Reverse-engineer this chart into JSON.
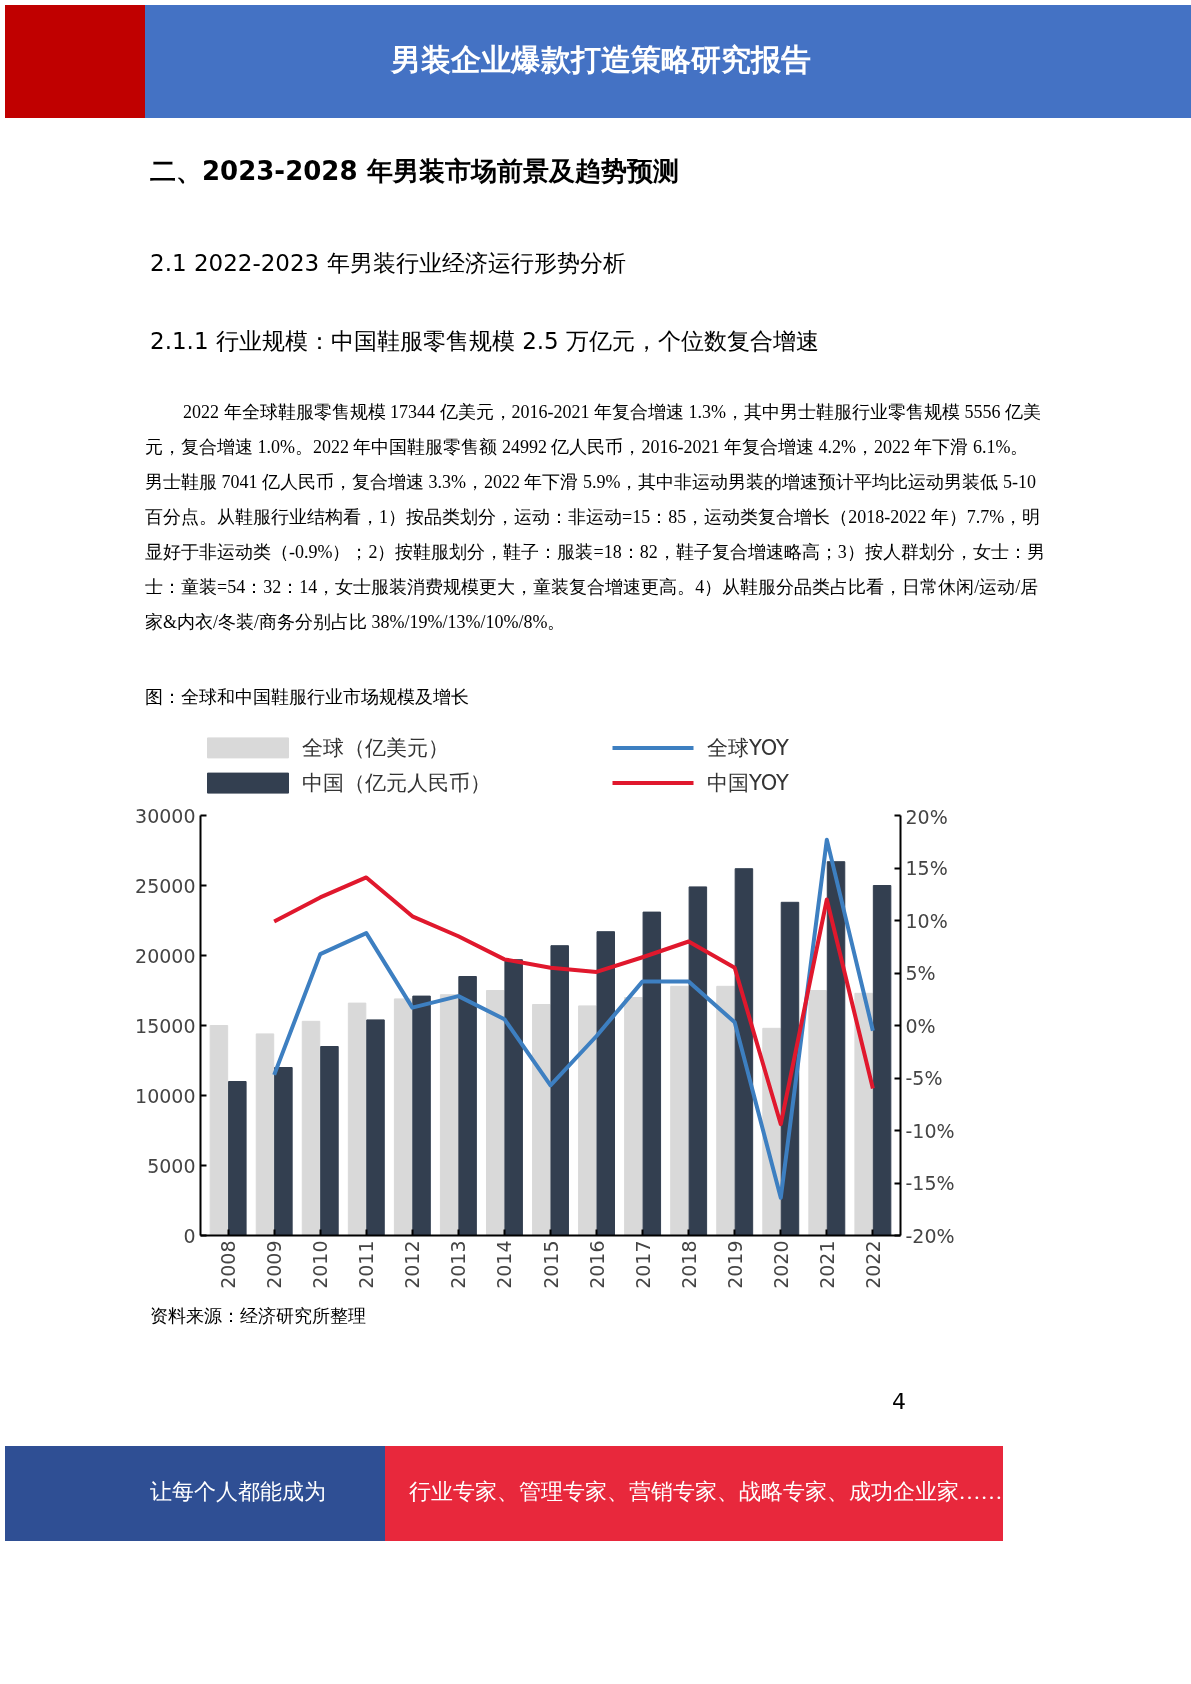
{
  "chart_data": {
    "type": "bar",
    "title": "图：全球和中国鞋服行业市场规模及增长",
    "annotations": [
      "男装企业爆款打造策略研究报告",
      "二、2023-2028 年男装市场前景及趋势预测",
      "2.1 2022-2023 年男装行业经济运行形势分析",
      "2.1.1 行业规模：中国鞋服零售规模 2.5 万亿元，个位数复合增速",
      "2022 年全球鞋服零售规模 17344 亿美元，2016-2021 年复合增速 1.3%，其中男士鞋服行业零售规模 5556 亿美元，复合增速 1.0%。2022 年中国鞋服零售额 24992 亿人民币，2016-2021 年复合增速 4.2%，2022 年下滑 6.1%。男士鞋服 7041 亿人民币，复合增速 3.3%，2022 年下滑 5.9%，其中非运动男装的增速预计平均比运动男装低 5-10 百分点。从鞋服行业结构看，1）按品类划分，运动：非运动=15：85，运动类复合增长（2018-2022 年）7.7%，明显好于非运动类（-0.9%）；2）按鞋服划分，鞋子：服装=18：82，鞋子复合增速略高；3）按人群划分，女士：男士：童装=54：32：14，女士服装消费规模更大，童装复合增速更高。4）从鞋服分品类占比看，日常休闲/运动/居家&内衣/冬装/商务分别占比 38%/19%/13%/10%/8%。",
      "资料来源：经济研究所整理",
      "4",
      "让每个人都能成为",
      "行业专家、管理专家、营销专家、战略专家、成功企业家……"
    ],
    "categories": [
      "2008",
      "2009",
      "2010",
      "2011",
      "2012",
      "2013",
      "2014",
      "2015",
      "2016",
      "2017",
      "2018",
      "2019",
      "2020",
      "2021",
      "2022"
    ],
    "series": [
      {
        "name": "全球（亿美元）",
        "color": "#d9d9d9",
        "values": [
          15000,
          14400,
          15300,
          16600,
          16900,
          17200,
          17500,
          16500,
          16400,
          17000,
          17800,
          17800,
          14800,
          17500,
          17300
        ]
      },
      {
        "name": "中国（亿元人民币）",
        "color": "#333f50",
        "values": [
          11000,
          12000,
          13500,
          15400,
          17100,
          18500,
          19700,
          20700,
          21700,
          23100,
          24900,
          26200,
          23800,
          26700,
          25000
        ]
      },
      {
        "name": "全球YOY",
        "type": "line",
        "axis": "y2",
        "color": "#3d7fc1",
        "values": [
          null,
          -4.7,
          6.8,
          8.8,
          1.7,
          2.8,
          0.6,
          -5.7,
          -1.0,
          4.2,
          4.2,
          0.3,
          -16.4,
          17.7,
          -0.5
        ]
      },
      {
        "name": "中国YOY",
        "type": "line",
        "axis": "y2",
        "color": "#e0182d",
        "values": [
          null,
          9.9,
          12.2,
          14.1,
          10.4,
          8.5,
          6.3,
          5.5,
          5.1,
          6.5,
          8.0,
          5.5,
          -9.4,
          12.0,
          -6.0
        ]
      }
    ],
    "ylim": [
      0,
      30000
    ],
    "yticks": [
      0,
      5000,
      10000,
      15000,
      20000,
      25000,
      30000
    ],
    "y2lim": [
      -20,
      20
    ],
    "y2ticks": [
      {
        "value": -20,
        "label": "-20%"
      },
      {
        "value": -15,
        "label": "-15%"
      },
      {
        "value": -10,
        "label": "-10%"
      },
      {
        "value": -5,
        "label": "-5%"
      },
      {
        "value": 0,
        "label": "0%"
      },
      {
        "value": 5,
        "label": "5%"
      },
      {
        "value": 10,
        "label": "10%"
      },
      {
        "value": 15,
        "label": "15%"
      },
      {
        "value": 20,
        "label": "20%"
      }
    ],
    "legend": "top",
    "grid": false,
    "line_style": "solid",
    "marker": "none"
  }
}
